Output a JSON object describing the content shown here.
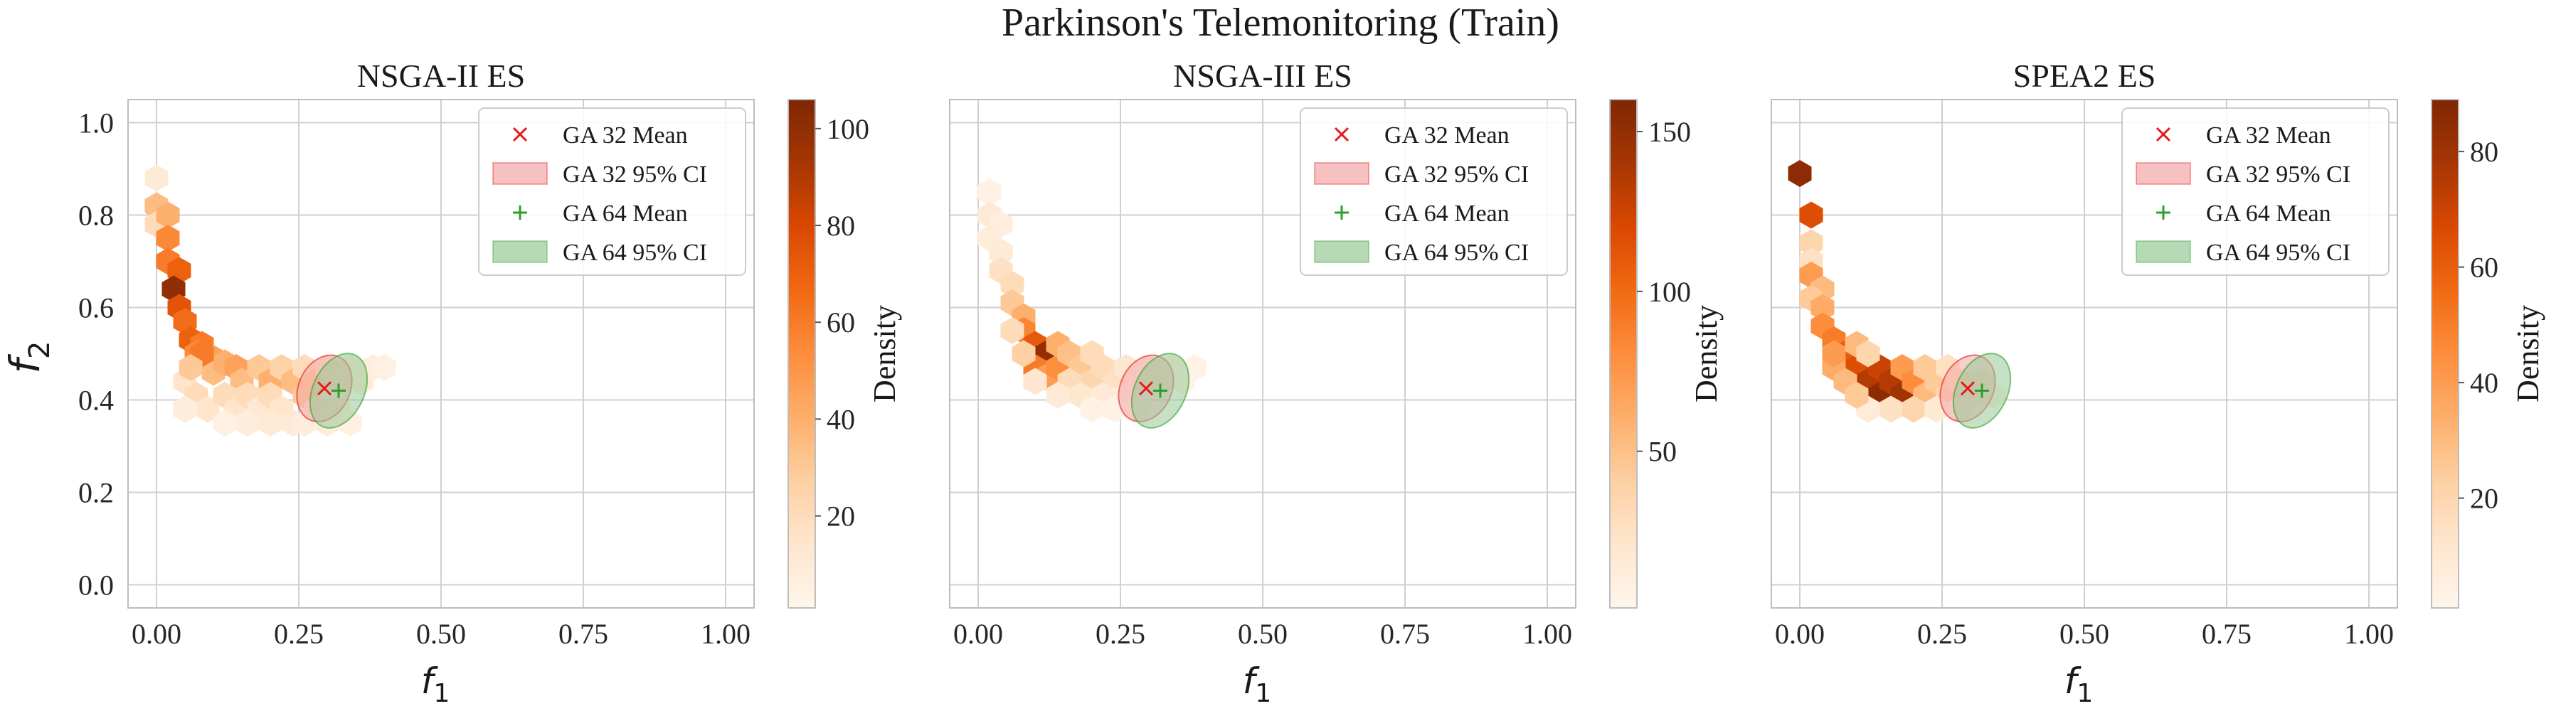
{
  "figure": {
    "title": "Parkinson's Telemonitoring (Train)"
  },
  "colors": {
    "ga32": "#e31a1c",
    "ga32_fill": "#f4a6a6",
    "ga64": "#2ca02c",
    "ga64_fill": "#97c997",
    "grid": "#d0d0d0",
    "spine": "#bdbdbd",
    "colormap": [
      "#fff5eb",
      "#fee6ce",
      "#fdd0a2",
      "#fdae6b",
      "#fd8d3c",
      "#f16913",
      "#d94801",
      "#a63603",
      "#7f2704"
    ]
  },
  "chart_data": [
    {
      "type": "hexbin",
      "title": "NSGA-II ES",
      "xlabel": "f",
      "xlabel_sub": "1",
      "ylabel": "f",
      "ylabel_sub": "2",
      "colorbar_label": "Density",
      "xlim": [
        -0.05,
        1.05
      ],
      "ylim": [
        -0.05,
        1.05
      ],
      "xticks": [
        "0.00",
        "0.25",
        "0.50",
        "0.75",
        "1.00"
      ],
      "yticks": [
        "0.0",
        "0.2",
        "0.4",
        "0.6",
        "0.8",
        "1.0"
      ],
      "yticks_shown": true,
      "ylabel_shown": true,
      "colorbar_range": [
        1,
        106
      ],
      "colorbar_ticks": [
        20,
        40,
        60,
        80,
        100
      ],
      "grid": true,
      "legend": {
        "position": "top-right",
        "entries": [
          "GA 32 Mean",
          "GA 32 95% CI",
          "GA 64 Mean",
          "GA 64 95% CI"
        ]
      },
      "ga32_mean": [
        0.295,
        0.425
      ],
      "ga64_mean": [
        0.32,
        0.42
      ],
      "ga32_ci": {
        "cx": 0.295,
        "cy": 0.425,
        "rx": 0.045,
        "ry": 0.075
      },
      "ga64_ci": {
        "cx": 0.32,
        "cy": 0.42,
        "rx": 0.045,
        "ry": 0.085
      },
      "density": [
        [
          0.0,
          0.88,
          10
        ],
        [
          0.0,
          0.82,
          35
        ],
        [
          0.0,
          0.78,
          20
        ],
        [
          0.02,
          0.8,
          40
        ],
        [
          0.02,
          0.75,
          55
        ],
        [
          0.02,
          0.7,
          60
        ],
        [
          0.04,
          0.68,
          70
        ],
        [
          0.03,
          0.64,
          100
        ],
        [
          0.04,
          0.6,
          75
        ],
        [
          0.05,
          0.57,
          65
        ],
        [
          0.06,
          0.53,
          70
        ],
        [
          0.08,
          0.52,
          60
        ],
        [
          0.07,
          0.5,
          55
        ],
        [
          0.1,
          0.49,
          45
        ],
        [
          0.1,
          0.46,
          35
        ],
        [
          0.12,
          0.48,
          40
        ],
        [
          0.14,
          0.47,
          45
        ],
        [
          0.15,
          0.44,
          35
        ],
        [
          0.18,
          0.47,
          30
        ],
        [
          0.2,
          0.44,
          40
        ],
        [
          0.22,
          0.47,
          25
        ],
        [
          0.24,
          0.44,
          35
        ],
        [
          0.26,
          0.47,
          20
        ],
        [
          0.26,
          0.41,
          30
        ],
        [
          0.28,
          0.44,
          30
        ],
        [
          0.3,
          0.47,
          15
        ],
        [
          0.32,
          0.44,
          15
        ],
        [
          0.34,
          0.47,
          10
        ],
        [
          0.36,
          0.44,
          10
        ],
        [
          0.38,
          0.47,
          8
        ],
        [
          0.4,
          0.47,
          5
        ],
        [
          0.05,
          0.44,
          15
        ],
        [
          0.07,
          0.41,
          20
        ],
        [
          0.09,
          0.38,
          15
        ],
        [
          0.05,
          0.38,
          8
        ],
        [
          0.12,
          0.41,
          20
        ],
        [
          0.14,
          0.38,
          15
        ],
        [
          0.16,
          0.41,
          20
        ],
        [
          0.18,
          0.38,
          12
        ],
        [
          0.2,
          0.41,
          20
        ],
        [
          0.22,
          0.38,
          15
        ],
        [
          0.24,
          0.35,
          10
        ],
        [
          0.16,
          0.35,
          8
        ],
        [
          0.2,
          0.35,
          10
        ],
        [
          0.28,
          0.38,
          15
        ],
        [
          0.3,
          0.35,
          8
        ],
        [
          0.32,
          0.38,
          8
        ],
        [
          0.34,
          0.35,
          5
        ],
        [
          0.26,
          0.35,
          8
        ],
        [
          0.12,
          0.35,
          5
        ],
        [
          0.08,
          0.5,
          60
        ],
        [
          0.06,
          0.47,
          30
        ]
      ]
    },
    {
      "type": "hexbin",
      "title": "NSGA-III ES",
      "xlabel": "f",
      "xlabel_sub": "1",
      "ylabel": "",
      "ylabel_sub": "",
      "colorbar_label": "Density",
      "xlim": [
        -0.05,
        1.05
      ],
      "ylim": [
        -0.05,
        1.05
      ],
      "xticks": [
        "0.00",
        "0.25",
        "0.50",
        "0.75",
        "1.00"
      ],
      "yticks": [],
      "yticks_shown": false,
      "ylabel_shown": false,
      "colorbar_range": [
        1,
        160
      ],
      "colorbar_ticks": [
        50,
        100,
        150
      ],
      "grid": true,
      "legend": {
        "position": "top-right",
        "entries": [
          "GA 32 Mean",
          "GA 32 95% CI",
          "GA 64 Mean",
          "GA 64 95% CI"
        ]
      },
      "ga32_mean": [
        0.295,
        0.425
      ],
      "ga64_mean": [
        0.32,
        0.42
      ],
      "ga32_ci": {
        "cx": 0.295,
        "cy": 0.425,
        "rx": 0.045,
        "ry": 0.075
      },
      "ga64_ci": {
        "cx": 0.32,
        "cy": 0.42,
        "rx": 0.045,
        "ry": 0.085
      },
      "density": [
        [
          0.02,
          0.85,
          5
        ],
        [
          0.02,
          0.8,
          15
        ],
        [
          0.04,
          0.78,
          10
        ],
        [
          0.02,
          0.75,
          12
        ],
        [
          0.04,
          0.72,
          15
        ],
        [
          0.04,
          0.68,
          25
        ],
        [
          0.06,
          0.65,
          30
        ],
        [
          0.06,
          0.61,
          45
        ],
        [
          0.08,
          0.58,
          60
        ],
        [
          0.08,
          0.55,
          85
        ],
        [
          0.1,
          0.52,
          110
        ],
        [
          0.12,
          0.5,
          150
        ],
        [
          0.1,
          0.47,
          90
        ],
        [
          0.12,
          0.45,
          70
        ],
        [
          0.14,
          0.47,
          80
        ],
        [
          0.14,
          0.52,
          60
        ],
        [
          0.16,
          0.5,
          50
        ],
        [
          0.18,
          0.47,
          45
        ],
        [
          0.2,
          0.5,
          30
        ],
        [
          0.2,
          0.44,
          35
        ],
        [
          0.22,
          0.47,
          30
        ],
        [
          0.24,
          0.44,
          25
        ],
        [
          0.26,
          0.47,
          20
        ],
        [
          0.28,
          0.44,
          15
        ],
        [
          0.3,
          0.47,
          10
        ],
        [
          0.32,
          0.44,
          10
        ],
        [
          0.34,
          0.47,
          8
        ],
        [
          0.36,
          0.44,
          5
        ],
        [
          0.38,
          0.47,
          3
        ],
        [
          0.08,
          0.5,
          40
        ],
        [
          0.06,
          0.55,
          30
        ],
        [
          0.16,
          0.44,
          30
        ],
        [
          0.18,
          0.41,
          20
        ],
        [
          0.14,
          0.41,
          15
        ],
        [
          0.22,
          0.41,
          15
        ],
        [
          0.26,
          0.41,
          10
        ],
        [
          0.1,
          0.44,
          20
        ],
        [
          0.2,
          0.38,
          5
        ],
        [
          0.24,
          0.38,
          5
        ],
        [
          0.28,
          0.38,
          3
        ]
      ]
    },
    {
      "type": "hexbin",
      "title": "SPEA2 ES",
      "xlabel": "f",
      "xlabel_sub": "1",
      "ylabel": "",
      "ylabel_sub": "",
      "colorbar_label": "Density",
      "xlim": [
        -0.05,
        1.05
      ],
      "ylim": [
        -0.05,
        1.05
      ],
      "xticks": [
        "0.00",
        "0.25",
        "0.50",
        "0.75",
        "1.00"
      ],
      "yticks": [],
      "yticks_shown": false,
      "ylabel_shown": false,
      "colorbar_range": [
        1,
        89
      ],
      "colorbar_ticks": [
        20,
        40,
        60,
        80
      ],
      "grid": true,
      "legend": {
        "position": "top-right",
        "entries": [
          "GA 32 Mean",
          "GA 32 95% CI",
          "GA 64 Mean",
          "GA 64 95% CI"
        ]
      },
      "ga32_mean": [
        0.295,
        0.425
      ],
      "ga64_mean": [
        0.32,
        0.42
      ],
      "ga32_ci": {
        "cx": 0.295,
        "cy": 0.425,
        "rx": 0.045,
        "ry": 0.075
      },
      "ga64_ci": {
        "cx": 0.32,
        "cy": 0.42,
        "rx": 0.045,
        "ry": 0.085
      },
      "density": [
        [
          0.0,
          0.89,
          85
        ],
        [
          0.02,
          0.8,
          65
        ],
        [
          0.02,
          0.74,
          20
        ],
        [
          0.02,
          0.7,
          15
        ],
        [
          0.02,
          0.67,
          40
        ],
        [
          0.04,
          0.64,
          30
        ],
        [
          0.02,
          0.62,
          25
        ],
        [
          0.04,
          0.6,
          35
        ],
        [
          0.04,
          0.56,
          45
        ],
        [
          0.06,
          0.53,
          50
        ],
        [
          0.08,
          0.5,
          60
        ],
        [
          0.1,
          0.47,
          65
        ],
        [
          0.12,
          0.44,
          75
        ],
        [
          0.14,
          0.47,
          70
        ],
        [
          0.14,
          0.41,
          85
        ],
        [
          0.16,
          0.44,
          75
        ],
        [
          0.18,
          0.41,
          80
        ],
        [
          0.18,
          0.47,
          40
        ],
        [
          0.2,
          0.44,
          45
        ],
        [
          0.22,
          0.47,
          25
        ],
        [
          0.22,
          0.41,
          30
        ],
        [
          0.24,
          0.44,
          25
        ],
        [
          0.26,
          0.41,
          20
        ],
        [
          0.26,
          0.47,
          15
        ],
        [
          0.28,
          0.44,
          15
        ],
        [
          0.3,
          0.41,
          10
        ],
        [
          0.32,
          0.44,
          8
        ],
        [
          0.34,
          0.41,
          5
        ],
        [
          0.2,
          0.38,
          20
        ],
        [
          0.16,
          0.38,
          15
        ],
        [
          0.24,
          0.38,
          10
        ],
        [
          0.12,
          0.38,
          8
        ],
        [
          0.06,
          0.47,
          35
        ],
        [
          0.08,
          0.44,
          30
        ],
        [
          0.1,
          0.41,
          25
        ],
        [
          0.28,
          0.38,
          5
        ],
        [
          0.06,
          0.5,
          40
        ],
        [
          0.1,
          0.52,
          30
        ],
        [
          0.12,
          0.5,
          20
        ]
      ]
    }
  ]
}
